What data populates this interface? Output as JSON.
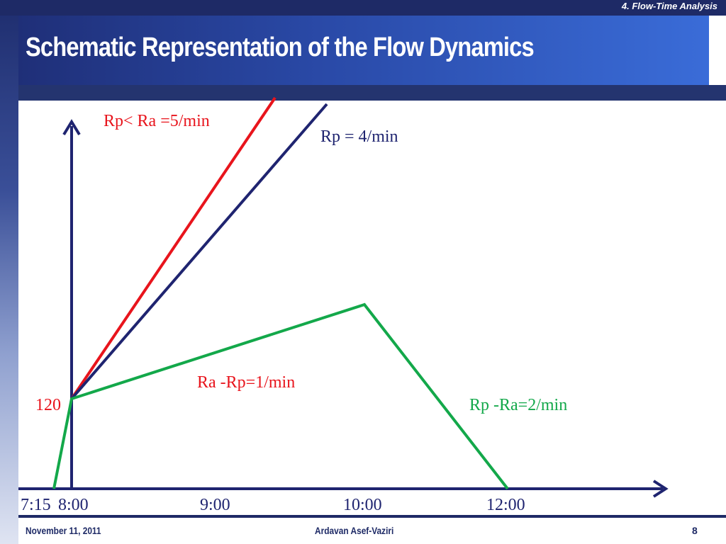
{
  "header": {
    "section": "4. Flow-Time Analysis",
    "title": "Schematic Representation of the Flow Dynamics"
  },
  "diagram": {
    "labels": {
      "red_rate": "Rp< Ra =5/min",
      "blue_rate": "Rp = 4/min",
      "green_up": "Ra -Rp=1/min",
      "green_down": "Rp -Ra=2/min",
      "y_start": "120"
    },
    "ticks": [
      "7:15",
      "8:00",
      "9:00",
      "10:00",
      "12:00"
    ]
  },
  "colors": {
    "red": "#e8141c",
    "blue": "#1f2470",
    "green": "#13a84a",
    "brand": "#1e2a66"
  },
  "footer": {
    "date": "November 11, 2011",
    "author": "Ardavan Asef-Vaziri",
    "page": "8"
  }
}
